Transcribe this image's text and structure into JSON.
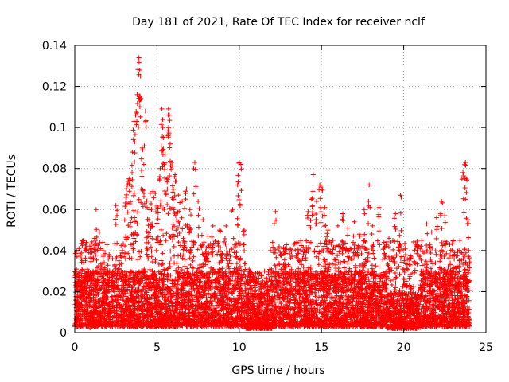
{
  "chart_data": {
    "type": "scatter",
    "title": "Day 181 of 2021, Rate Of TEC Index for receiver nclf",
    "xlabel": "GPS time / hours",
    "ylabel": "ROTI / TECUs",
    "xlim": [
      0,
      25
    ],
    "ylim": [
      0,
      0.14
    ],
    "xticks": [
      0,
      5,
      10,
      15,
      20,
      25
    ],
    "xtick_labels": [
      "0",
      "5",
      "10",
      "15",
      "20",
      "25"
    ],
    "yticks": [
      0,
      0.02,
      0.04,
      0.06,
      0.08,
      0.1,
      0.12,
      0.14
    ],
    "ytick_labels": [
      "0",
      "0.02",
      "0.04",
      "0.06",
      "0.08",
      "0.1",
      "0.12",
      "0.14"
    ],
    "grid": true,
    "marker": "plus",
    "color": "#ff0000",
    "series": [
      {
        "name": "ROTI",
        "points": [
          [
            0.1,
            0.031
          ],
          [
            0.3,
            0.028
          ],
          [
            0.5,
            0.025
          ],
          [
            0.7,
            0.044
          ],
          [
            0.9,
            0.022
          ],
          [
            1.0,
            0.041
          ],
          [
            1.2,
            0.046
          ],
          [
            1.3,
            0.06
          ],
          [
            1.5,
            0.049
          ],
          [
            1.7,
            0.032
          ],
          [
            2.0,
            0.028
          ],
          [
            2.3,
            0.036
          ],
          [
            2.5,
            0.062
          ],
          [
            2.7,
            0.035
          ],
          [
            2.9,
            0.04
          ],
          [
            3.1,
            0.047
          ],
          [
            3.2,
            0.072
          ],
          [
            3.3,
            0.075
          ],
          [
            3.5,
            0.088
          ],
          [
            3.6,
            0.103
          ],
          [
            3.7,
            0.106
          ],
          [
            3.8,
            0.116
          ],
          [
            3.9,
            0.134
          ],
          [
            3.95,
            0.128
          ],
          [
            4.0,
            0.125
          ],
          [
            4.1,
            0.09
          ],
          [
            4.2,
            0.082
          ],
          [
            4.3,
            0.108
          ],
          [
            4.4,
            0.061
          ],
          [
            4.5,
            0.055
          ],
          [
            4.7,
            0.053
          ],
          [
            5.0,
            0.062
          ],
          [
            5.2,
            0.08
          ],
          [
            5.3,
            0.109
          ],
          [
            5.35,
            0.1
          ],
          [
            5.4,
            0.095
          ],
          [
            5.5,
            0.087
          ],
          [
            5.6,
            0.075
          ],
          [
            5.7,
            0.109
          ],
          [
            5.75,
            0.106
          ],
          [
            5.8,
            0.092
          ],
          [
            5.9,
            0.083
          ],
          [
            6.0,
            0.065
          ],
          [
            6.1,
            0.077
          ],
          [
            6.3,
            0.054
          ],
          [
            6.6,
            0.046
          ],
          [
            6.8,
            0.07
          ],
          [
            7.0,
            0.06
          ],
          [
            7.3,
            0.083
          ],
          [
            7.5,
            0.064
          ],
          [
            7.8,
            0.055
          ],
          [
            8.1,
            0.047
          ],
          [
            8.4,
            0.052
          ],
          [
            8.8,
            0.05
          ],
          [
            9.2,
            0.052
          ],
          [
            9.6,
            0.06
          ],
          [
            9.9,
            0.072
          ],
          [
            10.0,
            0.083
          ],
          [
            10.1,
            0.082
          ],
          [
            10.3,
            0.05
          ],
          [
            10.6,
            0.031
          ],
          [
            11.0,
            0.029
          ],
          [
            11.5,
            0.022
          ],
          [
            11.9,
            0.04
          ],
          [
            12.2,
            0.059
          ],
          [
            12.5,
            0.038
          ],
          [
            12.8,
            0.041
          ],
          [
            13.1,
            0.03
          ],
          [
            13.5,
            0.044
          ],
          [
            13.9,
            0.038
          ],
          [
            14.2,
            0.059
          ],
          [
            14.4,
            0.065
          ],
          [
            14.5,
            0.077
          ],
          [
            14.7,
            0.064
          ],
          [
            14.9,
            0.072
          ],
          [
            15.0,
            0.07
          ],
          [
            15.2,
            0.061
          ],
          [
            15.4,
            0.05
          ],
          [
            15.7,
            0.045
          ],
          [
            16.0,
            0.052
          ],
          [
            16.3,
            0.058
          ],
          [
            16.6,
            0.051
          ],
          [
            17.0,
            0.054
          ],
          [
            17.3,
            0.048
          ],
          [
            17.6,
            0.06
          ],
          [
            17.9,
            0.072
          ],
          [
            18.1,
            0.052
          ],
          [
            18.5,
            0.061
          ],
          [
            18.8,
            0.044
          ],
          [
            19.1,
            0.046
          ],
          [
            19.5,
            0.058
          ],
          [
            19.8,
            0.067
          ],
          [
            20.1,
            0.041
          ],
          [
            20.4,
            0.033
          ],
          [
            20.8,
            0.043
          ],
          [
            21.1,
            0.045
          ],
          [
            21.4,
            0.053
          ],
          [
            21.7,
            0.049
          ],
          [
            22.0,
            0.056
          ],
          [
            22.3,
            0.064
          ],
          [
            22.5,
            0.057
          ],
          [
            22.8,
            0.043
          ],
          [
            23.1,
            0.039
          ],
          [
            23.4,
            0.035
          ],
          [
            23.6,
            0.078
          ],
          [
            23.75,
            0.083
          ],
          [
            23.8,
            0.075
          ],
          [
            23.9,
            0.055
          ],
          [
            23.95,
            0.04
          ]
        ]
      }
    ],
    "noise_band": {
      "comment": "dense baseline of ROTI values between 0.003 and 0.03 TECU/s across the whole day",
      "x_range": [
        0,
        24
      ],
      "y_range": [
        0.003,
        0.03
      ]
    }
  }
}
